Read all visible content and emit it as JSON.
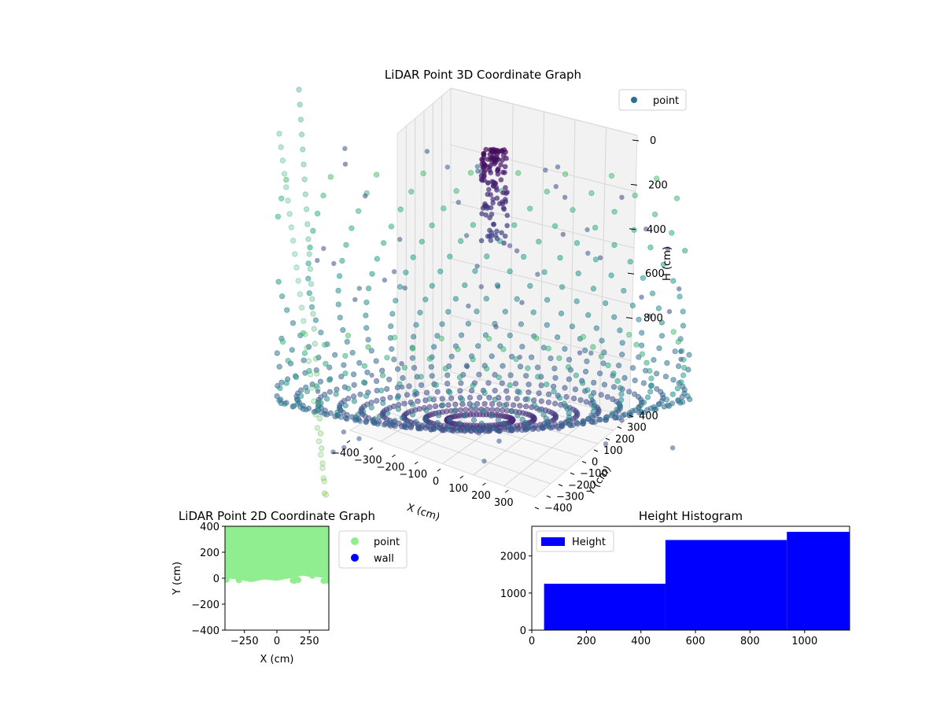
{
  "chart_data": [
    {
      "type": "scatter3d",
      "title": "LiDAR Point 3D Coordinate Graph",
      "xlabel": "X (cm)",
      "ylabel": "Y (cm)",
      "zlabel": "H (cm)",
      "x_ticks": [
        -400,
        -300,
        -200,
        -100,
        0,
        100,
        200,
        300
      ],
      "y_ticks": [
        -400,
        -300,
        -200,
        -100,
        0,
        100,
        200,
        300,
        400
      ],
      "z_ticks": [
        0,
        200,
        400,
        600,
        800
      ],
      "xlim": [
        -400,
        400
      ],
      "ylim": [
        -400,
        400
      ],
      "zlim": [
        1000,
        0
      ],
      "legend": [
        {
          "name": "point",
          "color": "#2a6f8e"
        }
      ],
      "legend_position": "top-right",
      "colormap": "viridis",
      "rings": {
        "count": 22,
        "points_per_ring": 64
      },
      "grid": true
    },
    {
      "type": "scatter",
      "title": "LiDAR Point 2D Coordinate Graph",
      "xlabel": "X (cm)",
      "ylabel": "Y (cm)",
      "x_ticks": [
        -250,
        0,
        250
      ],
      "y_ticks": [
        -400,
        -200,
        0,
        200,
        400
      ],
      "xlim": [
        -400,
        400
      ],
      "ylim": [
        -400,
        400
      ],
      "series": [
        {
          "name": "point",
          "color": "#90ee90"
        },
        {
          "name": "wall",
          "color": "#0000ff"
        }
      ],
      "legend_position": "outside-right"
    },
    {
      "type": "bar",
      "title": "Height Histogram",
      "x_ticks": [
        0,
        200,
        400,
        600,
        800,
        1000
      ],
      "y_ticks": [
        0,
        1000,
        2000
      ],
      "xlim": [
        0,
        1165
      ],
      "ylim": [
        0,
        2800
      ],
      "bins": [
        {
          "start": 45,
          "end": 490,
          "count": 1250
        },
        {
          "start": 490,
          "end": 935,
          "count": 2430
        },
        {
          "start": 935,
          "end": 1165,
          "count": 2650
        }
      ],
      "color": "#0000ff",
      "legend": [
        {
          "name": "Height",
          "color": "#0000ff"
        }
      ],
      "legend_position": "top-left"
    }
  ]
}
